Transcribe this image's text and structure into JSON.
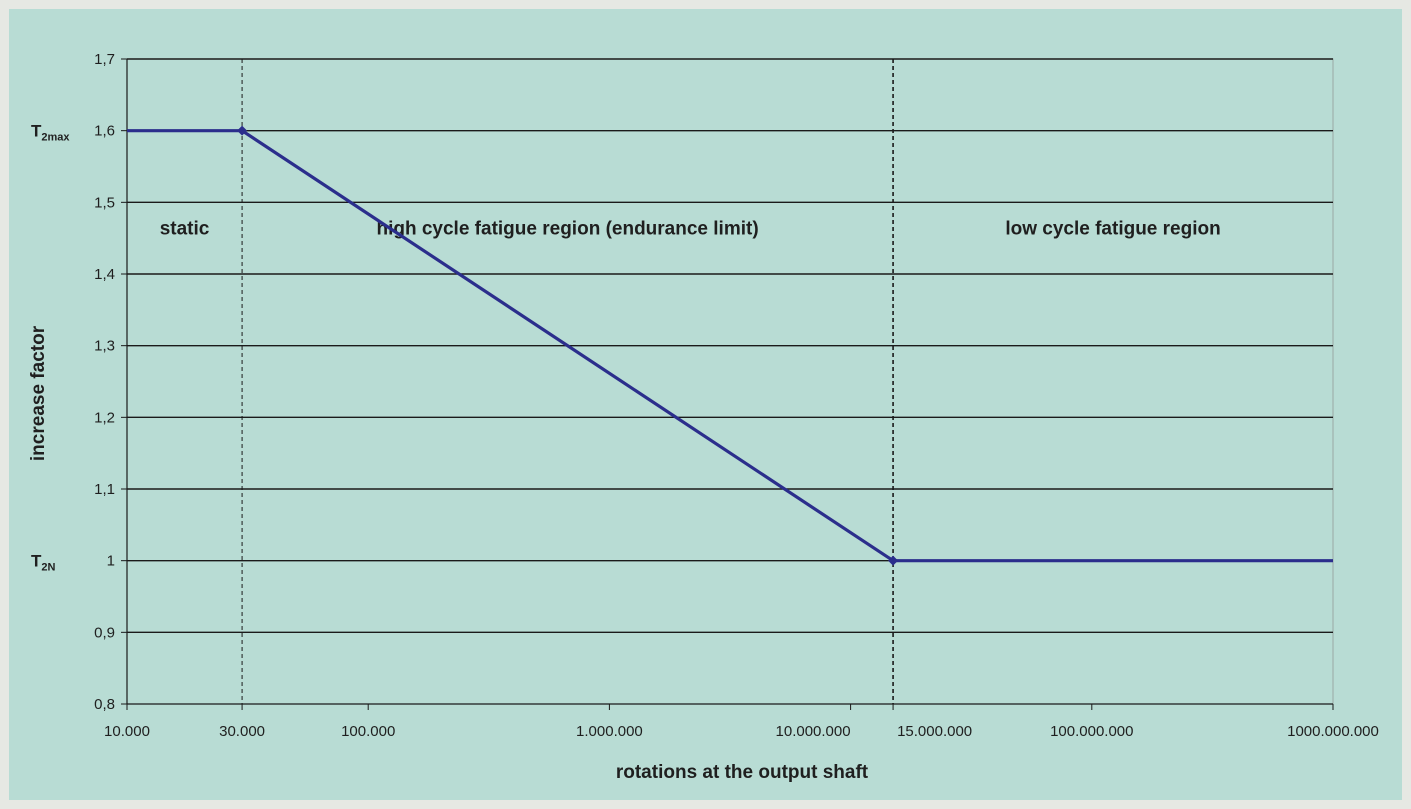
{
  "chart_data": {
    "type": "line",
    "xlabel": "rotations at the output shaft",
    "ylabel": "increase factor",
    "x_scale": "log",
    "xlim": [
      10000,
      1000000000
    ],
    "ylim": [
      0.8,
      1.7
    ],
    "y_ticks": [
      0.8,
      0.9,
      1.0,
      1.1,
      1.2,
      1.3,
      1.4,
      1.5,
      1.6,
      1.7
    ],
    "y_tick_labels": [
      "0,8",
      "0,9",
      "1",
      "1,1",
      "1,2",
      "1,3",
      "1,4",
      "1,5",
      "1,6",
      "1,7"
    ],
    "x_ticks": [
      10000,
      30000,
      100000,
      1000000,
      10000000,
      15000000,
      100000000,
      1000000000
    ],
    "x_tick_labels": [
      "10.000",
      "30.000",
      "100.000",
      "1.000.000",
      "10.000.000",
      "15.000.000",
      "100.000.000",
      "1000.000.000"
    ],
    "grid": "horizontal",
    "series": [
      {
        "color": "#2b2e8c",
        "x": [
          10000,
          30000,
          15000000,
          1000000000
        ],
        "y": [
          1.6,
          1.6,
          1.0,
          1.0
        ]
      }
    ],
    "markers": [
      {
        "x": 30000,
        "y": 1.6
      },
      {
        "x": 15000000,
        "y": 1.0
      }
    ],
    "vertical_dividers": [
      30000,
      15000000
    ],
    "regions": [
      {
        "label": "static",
        "from": 10000,
        "to": 30000
      },
      {
        "label": "high cycle fatigue region (endurance limit)",
        "from": 30000,
        "to": 15000000
      },
      {
        "label": "low cycle fatigue region",
        "from": 15000000,
        "to": 1000000000
      }
    ],
    "reference_labels": [
      {
        "main": "T",
        "sub": "2max",
        "y": 1.6
      },
      {
        "main": "T",
        "sub": "2N",
        "y": 1.0
      }
    ]
  }
}
